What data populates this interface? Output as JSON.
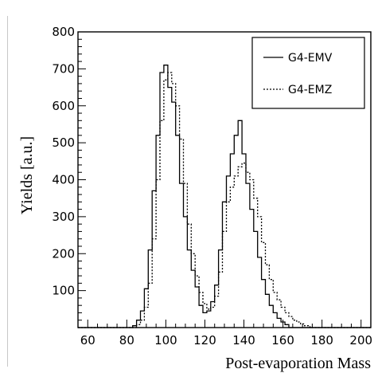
{
  "chart_data": {
    "type": "line",
    "title": "",
    "xlabel": "Post-evaporation Mass",
    "ylabel": "Yields [a.u.]",
    "xlim": [
      55,
      205
    ],
    "ylim": [
      0,
      800
    ],
    "xticks": [
      60,
      80,
      100,
      120,
      140,
      160,
      180,
      200
    ],
    "yticks": [
      100,
      200,
      300,
      400,
      500,
      600,
      700,
      800
    ],
    "grid": false,
    "legend_position": "top-right",
    "bin_start": 55,
    "bin_width": 2,
    "series": [
      {
        "name": "G4-EMV",
        "style": "solid",
        "color": "#000000",
        "values": [
          0,
          0,
          0,
          0,
          0,
          0,
          0,
          0,
          0,
          0,
          0,
          0,
          0,
          0,
          5,
          20,
          45,
          105,
          210,
          370,
          520,
          690,
          710,
          650,
          610,
          520,
          390,
          300,
          210,
          155,
          110,
          60,
          40,
          45,
          70,
          115,
          210,
          340,
          410,
          470,
          520,
          560,
          470,
          390,
          320,
          260,
          190,
          130,
          90,
          60,
          40,
          25,
          15,
          8,
          0,
          0,
          0,
          0,
          0,
          0,
          0,
          0,
          0,
          0,
          0,
          0,
          0,
          0,
          0,
          0,
          0,
          0,
          0,
          0,
          0
        ]
      },
      {
        "name": "G4-EMZ",
        "style": "dotted",
        "color": "#000000",
        "values": [
          0,
          0,
          0,
          0,
          0,
          0,
          0,
          0,
          0,
          0,
          0,
          0,
          0,
          0,
          0,
          8,
          20,
          55,
          120,
          240,
          400,
          560,
          670,
          690,
          660,
          600,
          510,
          390,
          280,
          200,
          140,
          95,
          65,
          50,
          55,
          85,
          150,
          260,
          340,
          380,
          410,
          435,
          445,
          420,
          400,
          350,
          300,
          230,
          170,
          130,
          95,
          75,
          55,
          40,
          30,
          20,
          15,
          10,
          5,
          2,
          0,
          0,
          0,
          0,
          0,
          0,
          0,
          0,
          0,
          0,
          0,
          0,
          0,
          0,
          0
        ]
      }
    ]
  }
}
